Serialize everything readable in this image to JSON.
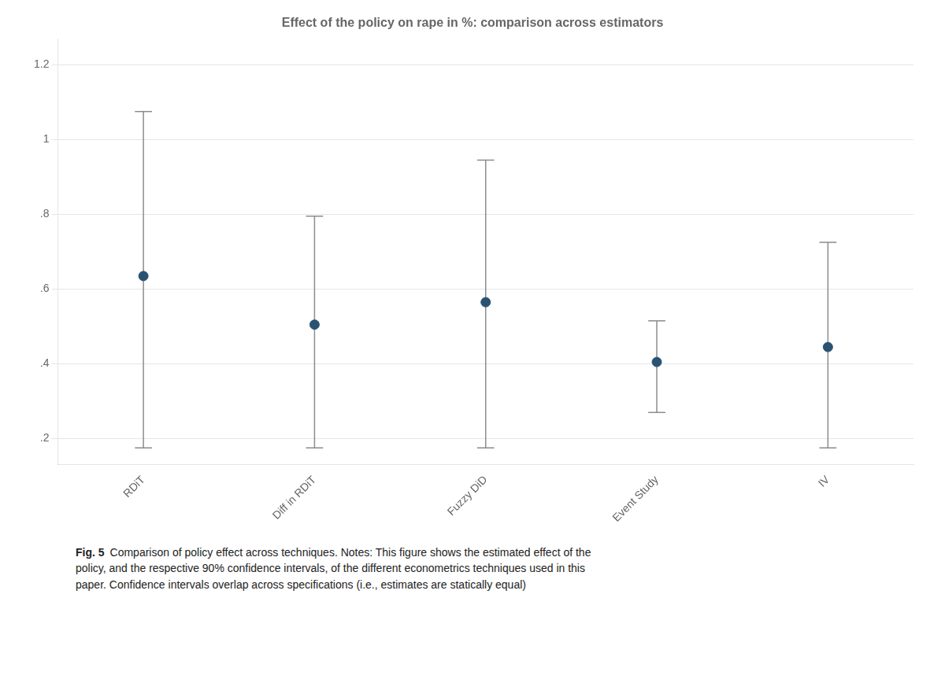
{
  "chart_data": {
    "type": "scatter",
    "title": "Effect of the policy on rape in %: comparison across estimators",
    "categories": [
      "RDiT",
      "Diff in RDiT",
      "Fuzzy DiD",
      "Event Study",
      "IV"
    ],
    "values": [
      0.635,
      0.505,
      0.565,
      0.405,
      0.445
    ],
    "ci_lower": [
      0.175,
      0.175,
      0.175,
      0.27,
      0.175
    ],
    "ci_upper": [
      1.075,
      0.795,
      0.945,
      0.515,
      0.725
    ],
    "color": "#2a5273",
    "ylim": [
      0.13,
      1.27
    ],
    "yticks": [
      {
        "value": 0.2,
        "label": ".2"
      },
      {
        "value": 0.4,
        "label": ".4"
      },
      {
        "value": 0.6,
        "label": ".6"
      },
      {
        "value": 0.8,
        "label": ".8"
      },
      1,
      1.2
    ],
    "grid": "y",
    "annotations": [
      "Fig. 5",
      "Comparison of policy effect across techniques. Notes: This figure shows the estimated effect of the\npolicy, and the respective 90% confidence intervals, of the different econometrics techniques used in this\npaper. Confidence intervals overlap across specifications (i.e., estimates are statically equal)"
    ]
  }
}
